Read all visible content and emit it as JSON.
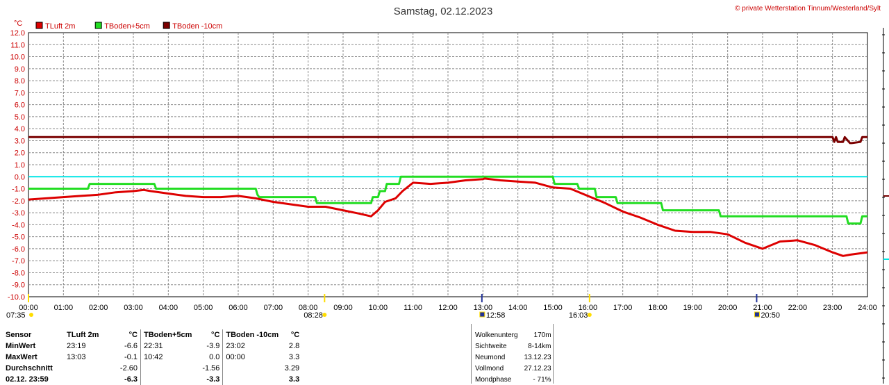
{
  "chart_data": {
    "type": "line",
    "title": "Samstag, 02.12.2023",
    "credit": "© private Wetterstation Tinnum/Westerland/Sylt",
    "yunit": "°C",
    "ylim": [
      -10,
      12
    ],
    "yticks": [
      "12.0",
      "11.0",
      "10.0",
      "9.0",
      "8.0",
      "7.0",
      "6.0",
      "5.0",
      "4.0",
      "3.0",
      "2.0",
      "1.0",
      "0.0",
      "-1.0",
      "-2.0",
      "-3.0",
      "-4.0",
      "-5.0",
      "-6.0",
      "-7.0",
      "-8.0",
      "-9.0",
      "-10.0"
    ],
    "xlim": [
      0,
      24
    ],
    "xticks": [
      "00:00",
      "01:00",
      "02:00",
      "03:00",
      "04:00",
      "05:00",
      "06:00",
      "07:00",
      "08:00",
      "09:00",
      "10:00",
      "11:00",
      "12:00",
      "13:00",
      "14:00",
      "15:00",
      "16:00",
      "17:00",
      "18:00",
      "19:00",
      "20:00",
      "21:00",
      "22:00",
      "23:00",
      "24:00"
    ],
    "grid": true,
    "reference_line": {
      "y": 0.0,
      "color": "#00e5e5"
    },
    "series": [
      {
        "name": "TLuft 2m",
        "color": "#dd0000",
        "x": [
          0,
          0.5,
          1,
          1.5,
          2,
          2.5,
          3,
          3.3,
          3.5,
          4,
          4.5,
          5,
          5.5,
          6,
          6.5,
          7,
          7.5,
          8,
          8.5,
          9,
          9.5,
          9.8,
          10,
          10.2,
          10.5,
          10.7,
          11,
          11.5,
          12,
          12.5,
          13,
          13.05,
          13.5,
          14,
          14.5,
          15,
          15.5,
          16,
          16.5,
          17,
          17.5,
          18,
          18.5,
          19,
          19.5,
          20,
          20.5,
          21,
          21.5,
          22,
          22.5,
          23,
          23.3,
          23.5,
          24
        ],
        "y": [
          -1.9,
          -1.8,
          -1.7,
          -1.6,
          -1.5,
          -1.3,
          -1.2,
          -1.1,
          -1.2,
          -1.4,
          -1.6,
          -1.7,
          -1.7,
          -1.6,
          -1.8,
          -2.1,
          -2.3,
          -2.5,
          -2.5,
          -2.8,
          -3.1,
          -3.3,
          -2.8,
          -2.1,
          -1.8,
          -1.2,
          -0.5,
          -0.6,
          -0.5,
          -0.3,
          -0.2,
          -0.15,
          -0.3,
          -0.4,
          -0.5,
          -0.9,
          -1.0,
          -1.6,
          -2.2,
          -2.9,
          -3.4,
          -4.0,
          -4.5,
          -4.6,
          -4.6,
          -4.8,
          -5.5,
          -6.0,
          -5.4,
          -5.3,
          -5.7,
          -6.3,
          -6.6,
          -6.5,
          -6.3
        ]
      },
      {
        "name": "TBoden+5cm",
        "color": "#22dd22",
        "x": [
          0,
          1.7,
          1.75,
          3.6,
          3.65,
          6.5,
          6.55,
          6.6,
          7.0,
          8.2,
          8.25,
          9.8,
          9.85,
          10.0,
          10.05,
          10.2,
          10.25,
          10.6,
          10.65,
          15.0,
          15.05,
          15.7,
          15.75,
          16.2,
          16.25,
          16.8,
          16.85,
          18.1,
          18.15,
          18.2,
          19.0,
          19.75,
          19.8,
          23.4,
          23.45,
          23.8,
          23.85,
          24
        ],
        "y": [
          -1.0,
          -1.0,
          -0.6,
          -0.6,
          -1.0,
          -1.0,
          -1.5,
          -1.7,
          -1.7,
          -1.7,
          -2.2,
          -2.2,
          -1.7,
          -1.7,
          -1.2,
          -1.2,
          -0.6,
          -0.6,
          0.0,
          0.0,
          -0.6,
          -0.6,
          -1.0,
          -1.0,
          -1.7,
          -1.7,
          -2.2,
          -2.2,
          -2.8,
          -2.8,
          -2.8,
          -2.8,
          -3.3,
          -3.3,
          -3.9,
          -3.9,
          -3.3,
          -3.3
        ]
      },
      {
        "name": "TBoden -10cm",
        "color": "#7a0000",
        "x": [
          0,
          23.0,
          23.05,
          23.1,
          23.15,
          23.3,
          23.35,
          23.5,
          23.55,
          23.8,
          23.85,
          23.9,
          24
        ],
        "y": [
          3.3,
          3.3,
          2.9,
          3.3,
          2.9,
          2.9,
          3.3,
          2.8,
          2.8,
          2.9,
          3.3,
          3.3,
          3.3
        ]
      }
    ],
    "annotations": [
      {
        "label": "07:35",
        "hour": 0.0,
        "color": "#ffdd00"
      },
      {
        "label": "08:28",
        "hour": 8.47,
        "color": "#ffdd00"
      },
      {
        "label": "12:58",
        "hour": 12.97,
        "color": "#223399"
      },
      {
        "label": "16:03",
        "hour": 16.05,
        "color": "#ffdd00"
      },
      {
        "label": "20:50",
        "hour": 20.83,
        "color": "#223399"
      }
    ]
  },
  "stats": {
    "headers": {
      "sensor": "Sensor",
      "c1": "TLuft 2m",
      "u1": "°C",
      "c2": "TBoden+5cm",
      "u2": "°C",
      "c3": "TBoden -10cm",
      "u3": "°C"
    },
    "rows": [
      {
        "label": "MinWert",
        "t1": "23:19",
        "v1": "-6.6",
        "t2": "22:31",
        "v2": "-3.9",
        "t3": "23:02",
        "v3": "2.8"
      },
      {
        "label": "MaxWert",
        "t1": "13:03",
        "v1": "-0.1",
        "t2": "10:42",
        "v2": "0.0",
        "t3": "00:00",
        "v3": "3.3"
      },
      {
        "label": "Durchschnitt",
        "t1": "",
        "v1": "-2.60",
        "t2": "",
        "v2": "-1.56",
        "t3": "",
        "v3": "3.29"
      },
      {
        "label": "02.12. 23:59",
        "t1": "",
        "v1": "-6.3",
        "t2": "",
        "v2": "-3.3",
        "t3": "",
        "v3": "3.3"
      }
    ]
  },
  "info": [
    {
      "label": "Wolkenunterg",
      "value": "170m"
    },
    {
      "label": "Sichtweite",
      "value": "8-14km"
    },
    {
      "label": "Neumond",
      "value": "13.12.23"
    },
    {
      "label": "Vollmond",
      "value": "27.12.23"
    },
    {
      "label": "Mondphase",
      "value": "- 71%"
    }
  ]
}
